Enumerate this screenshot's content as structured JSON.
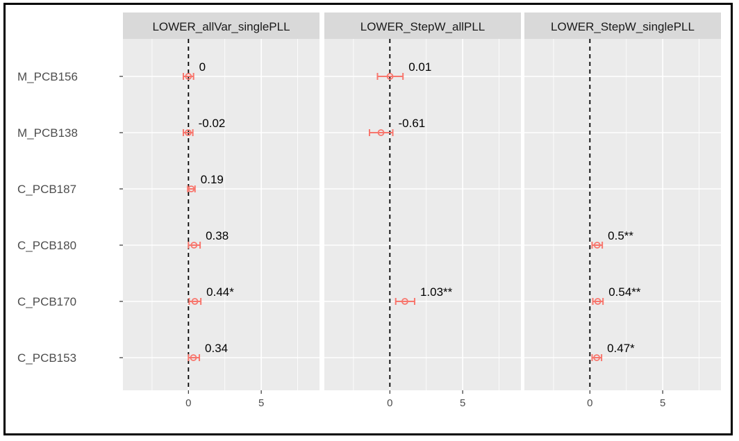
{
  "chart_data": {
    "type": "scatter",
    "style": "faceted forest plot with error bars",
    "facets": [
      "LOWER_allVar_singlePLL",
      "LOWER_StepW_allPLL",
      "LOWER_StepW_singlePLL"
    ],
    "categories": [
      "M_PCB156",
      "M_PCB138",
      "C_PCB187",
      "C_PCB180",
      "C_PCB170",
      "C_PCB153"
    ],
    "x_ticks": [
      0,
      5
    ],
    "xlim": [
      -4.5,
      9
    ],
    "reference_line_x": 0,
    "grid": true,
    "point_color": "#F8766D",
    "panel_background": "#EBEBEB",
    "strip_background": "#D9D9D9",
    "series": [
      {
        "facet": "LOWER_allVar_singlePLL",
        "points": [
          {
            "category": "M_PCB156",
            "estimate": 0,
            "low": -0.35,
            "high": 0.35,
            "label": "0"
          },
          {
            "category": "M_PCB138",
            "estimate": -0.02,
            "low": -0.35,
            "high": 0.3,
            "label": "-0.02"
          },
          {
            "category": "C_PCB187",
            "estimate": 0.19,
            "low": -0.05,
            "high": 0.45,
            "label": "0.19"
          },
          {
            "category": "C_PCB180",
            "estimate": 0.38,
            "low": 0.0,
            "high": 0.8,
            "label": "0.38"
          },
          {
            "category": "C_PCB170",
            "estimate": 0.44,
            "low": 0.05,
            "high": 0.85,
            "label": "0.44*"
          },
          {
            "category": "C_PCB153",
            "estimate": 0.34,
            "low": 0.0,
            "high": 0.75,
            "label": "0.34"
          }
        ]
      },
      {
        "facet": "LOWER_StepW_allPLL",
        "points": [
          {
            "category": "M_PCB156",
            "estimate": 0.01,
            "low": -0.85,
            "high": 0.9,
            "label": "0.01"
          },
          {
            "category": "M_PCB138",
            "estimate": -0.61,
            "low": -1.4,
            "high": 0.2,
            "label": "-0.61"
          },
          {
            "category": "C_PCB170",
            "estimate": 1.03,
            "low": 0.4,
            "high": 1.7,
            "label": "1.03**"
          }
        ]
      },
      {
        "facet": "LOWER_StepW_singlePLL",
        "points": [
          {
            "category": "C_PCB180",
            "estimate": 0.5,
            "low": 0.15,
            "high": 0.85,
            "label": "0.5**"
          },
          {
            "category": "C_PCB170",
            "estimate": 0.54,
            "low": 0.2,
            "high": 0.9,
            "label": "0.54**"
          },
          {
            "category": "C_PCB153",
            "estimate": 0.47,
            "low": 0.15,
            "high": 0.8,
            "label": "0.47*"
          }
        ]
      }
    ]
  }
}
